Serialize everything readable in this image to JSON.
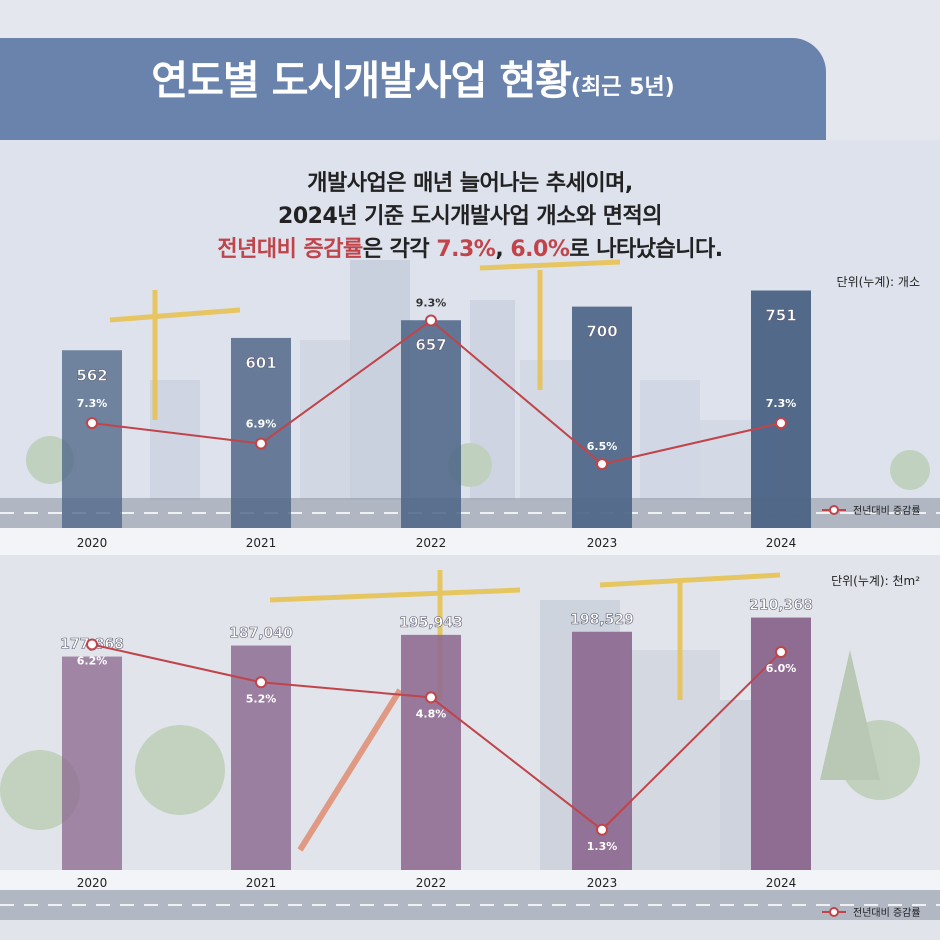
{
  "header": {
    "title": "연도별 도시개발사업 현황",
    "title_suffix": "(최근 5년)"
  },
  "summary": {
    "line1": "개발사업은 매년 늘어나는 추세이며,",
    "line2": "2024년 기준 도시개발사업 개소와 면적의",
    "line3_highlight": "전년대비 증감률",
    "line3_mid": "은 각각 ",
    "line3_val1": "7.3%",
    "line3_comma": ", ",
    "line3_val2": "6.0%",
    "line3_end": "로 나타났습니다."
  },
  "colors": {
    "header": "#6a83ac",
    "accent": "#c0444a",
    "bar_count": "#4f6688",
    "bar_area": "#8d6a91",
    "line": "#c0444a"
  },
  "chart_data": [
    {
      "type": "bar",
      "unit_label": "단위(누계): 개소",
      "categories": [
        "2020",
        "2021",
        "2022",
        "2023",
        "2024"
      ],
      "values": [
        562,
        601,
        657,
        700,
        751
      ],
      "value_labels": [
        "562",
        "601",
        "657",
        "700",
        "751"
      ],
      "ylim": [
        0,
        800
      ],
      "series": [
        {
          "name": "전년대비 증감률",
          "type": "line",
          "values": [
            7.3,
            6.9,
            9.3,
            6.5,
            7.3
          ],
          "labels": [
            "7.3%",
            "6.9%",
            "9.3%",
            "6.5%",
            "7.3%"
          ],
          "range": [
            5.8,
            9.7
          ]
        }
      ],
      "legend": "bottom-right"
    },
    {
      "type": "bar",
      "unit_label": "단위(누계): 천m²",
      "categories": [
        "2020",
        "2021",
        "2022",
        "2023",
        "2024"
      ],
      "values": [
        177868,
        187040,
        195943,
        198529,
        210368
      ],
      "value_labels": [
        "177,868",
        "187,040",
        "195,943",
        "198,529",
        "210,368"
      ],
      "ylim": [
        0,
        250000
      ],
      "series": [
        {
          "name": "전년대비 증감률",
          "type": "line",
          "values": [
            6.2,
            5.2,
            4.8,
            1.3,
            6.0
          ],
          "labels": [
            "6.2%",
            "5.2%",
            "4.8%",
            "1.3%",
            "6.0%"
          ],
          "range": [
            0.5,
            6.9
          ]
        }
      ],
      "legend": "bottom-right"
    }
  ]
}
